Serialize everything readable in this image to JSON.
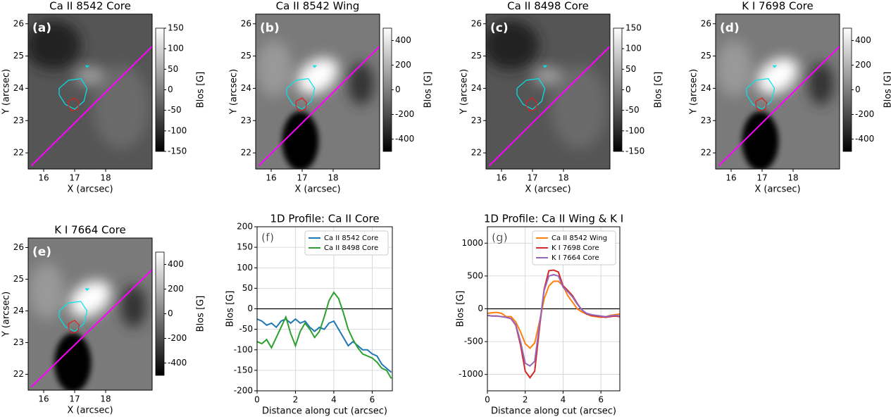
{
  "chart_data": [
    {
      "type": "image",
      "title": "Ca II 8542 Core",
      "panel_label": "(a)",
      "xlabel": "X (arcsec)",
      "ylabel": "Y (arcsec)",
      "xlim": [
        15.5,
        19.5
      ],
      "ylim": [
        21.5,
        26.3
      ],
      "xticks": [
        16,
        17,
        18
      ],
      "yticks": [
        22,
        23,
        24,
        25,
        26
      ],
      "colorbar": {
        "label": "Blos [G]",
        "lim": [
          -150,
          150
        ],
        "ticks": [
          -150,
          -100,
          -50,
          0,
          50,
          100,
          150
        ]
      }
    },
    {
      "type": "image",
      "title": "Ca II 8542 Wing",
      "panel_label": "(b)",
      "xlabel": "X (arcsec)",
      "ylabel": "Y (arcsec)",
      "xlim": [
        15.5,
        19.5
      ],
      "ylim": [
        21.5,
        26.3
      ],
      "xticks": [
        16,
        17,
        18
      ],
      "yticks": [
        22,
        23,
        24,
        25,
        26
      ],
      "colorbar": {
        "label": "Blos [G]",
        "lim": [
          -500,
          500
        ],
        "ticks": [
          -400,
          -200,
          0,
          200,
          400
        ]
      }
    },
    {
      "type": "image",
      "title": "Ca II 8498 Core",
      "panel_label": "(c)",
      "xlabel": "X (arcsec)",
      "ylabel": "Y (arcsec)",
      "xlim": [
        15.5,
        19.5
      ],
      "ylim": [
        21.5,
        26.3
      ],
      "xticks": [
        16,
        17,
        18
      ],
      "yticks": [
        22,
        23,
        24,
        25,
        26
      ],
      "colorbar": {
        "label": "Blos [G]",
        "lim": [
          -150,
          150
        ],
        "ticks": [
          -150,
          -100,
          -50,
          0,
          50,
          100,
          150
        ]
      }
    },
    {
      "type": "image",
      "title": "K I 7698 Core",
      "panel_label": "(d)",
      "xlabel": "X (arcsec)",
      "ylabel": "Y (arcsec)",
      "xlim": [
        15.5,
        19.5
      ],
      "ylim": [
        21.5,
        26.3
      ],
      "xticks": [
        16,
        17,
        18
      ],
      "yticks": [
        22,
        23,
        24,
        25,
        26
      ],
      "colorbar": {
        "label": "Blos [G]",
        "lim": [
          -500,
          500
        ],
        "ticks": [
          -400,
          -200,
          0,
          200,
          400
        ]
      }
    },
    {
      "type": "image",
      "title": "K I 7664 Core",
      "panel_label": "(e)",
      "xlabel": "X (arcsec)",
      "ylabel": "Y (arcsec)",
      "xlim": [
        15.5,
        19.5
      ],
      "ylim": [
        21.5,
        26.3
      ],
      "xticks": [
        16,
        17,
        18
      ],
      "yticks": [
        22,
        23,
        24,
        25,
        26
      ],
      "colorbar": {
        "label": "Blos [G]",
        "lim": [
          -500,
          500
        ],
        "ticks": [
          -400,
          -200,
          0,
          200,
          400
        ]
      }
    },
    {
      "type": "line",
      "title": "1D Profile: Ca II Core",
      "panel_label": "(f)",
      "xlabel": "Distance along cut (arcsec)",
      "ylabel": "Blos [G]",
      "xlim": [
        0,
        7.05
      ],
      "ylim": [
        -200,
        200
      ],
      "xticks": [
        0,
        2,
        4,
        6
      ],
      "yticks": [
        -200,
        -150,
        -100,
        -50,
        0,
        50,
        100,
        150,
        200
      ],
      "grid": true,
      "legend": "upper right",
      "x": [
        0,
        0.25,
        0.5,
        0.75,
        1,
        1.25,
        1.5,
        1.75,
        2,
        2.25,
        2.5,
        2.75,
        3,
        3.25,
        3.5,
        3.75,
        4,
        4.25,
        4.5,
        4.75,
        5,
        5.25,
        5.5,
        5.75,
        6,
        6.25,
        6.5,
        6.75,
        7
      ],
      "series": [
        {
          "name": "Ca II 8542 Core",
          "color": "#1f77b4",
          "values": [
            -25,
            -30,
            -40,
            -35,
            -45,
            -30,
            -25,
            -35,
            -25,
            -35,
            -30,
            -45,
            -55,
            -45,
            -50,
            -35,
            -30,
            -50,
            -70,
            -90,
            -80,
            -90,
            -100,
            -100,
            -110,
            -115,
            -135,
            -145,
            -155
          ]
        },
        {
          "name": "Ca II 8498 Core",
          "color": "#2ca02c",
          "values": [
            -80,
            -85,
            -75,
            -95,
            -70,
            -45,
            -20,
            -60,
            -90,
            -55,
            -35,
            -50,
            -70,
            -55,
            -20,
            20,
            40,
            25,
            -10,
            -50,
            -75,
            -95,
            -110,
            -115,
            -120,
            -130,
            -145,
            -150,
            -170
          ]
        }
      ]
    },
    {
      "type": "line",
      "title": "1D Profile: Ca II Wing & K I",
      "panel_label": "(g)",
      "xlabel": "Distance along cut (arcsec)",
      "ylabel": "Blos [G]",
      "xlim": [
        0,
        7
      ],
      "ylim": [
        -1250,
        1250
      ],
      "xticks": [
        0,
        2,
        4,
        6
      ],
      "yticks": [
        -1000,
        -500,
        0,
        500,
        1000
      ],
      "grid": true,
      "legend": "upper right",
      "x": [
        0,
        0.25,
        0.5,
        0.75,
        1,
        1.25,
        1.5,
        1.75,
        2,
        2.25,
        2.5,
        2.75,
        3,
        3.25,
        3.5,
        3.75,
        4,
        4.25,
        4.5,
        4.75,
        5,
        5.25,
        5.5,
        5.75,
        6,
        6.25,
        6.5,
        6.75,
        7
      ],
      "series": [
        {
          "name": "Ca II 8542 Wing",
          "color": "#ff7f0e",
          "values": [
            -70,
            -60,
            -55,
            -70,
            -120,
            -120,
            -200,
            -350,
            -530,
            -600,
            -520,
            -200,
            150,
            350,
            420,
            420,
            350,
            200,
            100,
            0,
            -50,
            -80,
            -110,
            -120,
            -130,
            -120,
            -100,
            -90,
            -80
          ]
        },
        {
          "name": "K I 7698 Core",
          "color": "#d62728",
          "values": [
            -100,
            -110,
            -110,
            -120,
            -130,
            -150,
            -250,
            -550,
            -950,
            -1050,
            -950,
            -300,
            300,
            580,
            590,
            560,
            350,
            280,
            200,
            80,
            -20,
            -80,
            -100,
            -110,
            -120,
            -130,
            -120,
            -110,
            -120
          ]
        },
        {
          "name": "K I 7664 Core",
          "color": "#9467bd",
          "values": [
            -100,
            -110,
            -110,
            -120,
            -130,
            -150,
            -240,
            -500,
            -830,
            -870,
            -800,
            -250,
            280,
            500,
            520,
            500,
            330,
            260,
            180,
            70,
            -20,
            -70,
            -90,
            -100,
            -110,
            -120,
            -110,
            -100,
            -110
          ]
        }
      ]
    }
  ],
  "overlays": [
    {
      "color": "#ff00ff",
      "x": [
        15.6,
        19.5
      ],
      "y": [
        21.6,
        25.3
      ]
    },
    {
      "color": "#00e5ee",
      "x": [
        16.5,
        16.8,
        17.2,
        17.4,
        17.3,
        17.0,
        16.7,
        16.5,
        16.5
      ],
      "y": [
        24.0,
        24.25,
        24.3,
        24.0,
        23.6,
        23.35,
        23.5,
        23.8,
        24.0
      ]
    },
    {
      "color": "#00e5ee",
      "x": [
        17.35,
        17.45,
        17.4,
        17.35
      ],
      "y": [
        24.7,
        24.7,
        24.65,
        24.7
      ]
    },
    {
      "color": "#e02020",
      "x": [
        16.8,
        17.0,
        17.15,
        17.1,
        16.9,
        16.8,
        16.8
      ],
      "y": [
        23.6,
        23.7,
        23.55,
        23.35,
        23.3,
        23.45,
        23.6
      ]
    }
  ]
}
